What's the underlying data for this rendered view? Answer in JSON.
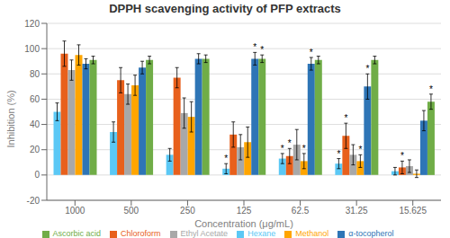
{
  "chart_data": {
    "type": "bar",
    "title": "DPPH scavenging activity of PFP extracts",
    "xlabel": "Concentration (μg/mL)",
    "ylabel": "Inhibition (%)",
    "categories": [
      "1000",
      "500",
      "250",
      "125",
      "62.5",
      "31.25",
      "15.625"
    ],
    "series": [
      {
        "name": "Hexane",
        "color": "#5BC8F5",
        "values": [
          50,
          34,
          16,
          5,
          13,
          9,
          3
        ],
        "errors": [
          7,
          8,
          5,
          4,
          4,
          4,
          3
        ]
      },
      {
        "name": "Chloroform",
        "color": "#E8601C",
        "values": [
          96,
          75,
          77,
          32,
          15,
          31,
          6
        ],
        "errors": [
          10,
          10,
          8,
          10,
          6,
          10,
          5
        ]
      },
      {
        "name": "Ethyl Acetate",
        "color": "#A8A8A8",
        "values": [
          83,
          64,
          49,
          22,
          24,
          16,
          7
        ],
        "errors": [
          8,
          8,
          12,
          10,
          12,
          8,
          5
        ]
      },
      {
        "name": "Methanol",
        "color": "#FFA500",
        "values": [
          95,
          71,
          46,
          26,
          11,
          11,
          1
        ],
        "errors": [
          8,
          8,
          12,
          12,
          6,
          5,
          3
        ]
      },
      {
        "name": "α-tocopherol",
        "color": "#2E75B6",
        "values": [
          88,
          85,
          92,
          92,
          88,
          70,
          43
        ],
        "errors": [
          4,
          5,
          4,
          5,
          5,
          10,
          8
        ]
      },
      {
        "name": "Ascorbic acid",
        "color": "#70AD47",
        "values": [
          91,
          91,
          92,
          92,
          91,
          91,
          58
        ],
        "errors": [
          3,
          3,
          3,
          3,
          3,
          3,
          6
        ]
      }
    ],
    "annotations": [
      {
        "text": "*",
        "category": "125",
        "series": "Hexane"
      },
      {
        "text": "*",
        "category": "125",
        "series": "α-tocopherol"
      },
      {
        "text": "*",
        "category": "125",
        "series": "Ascorbic acid"
      },
      {
        "text": "*",
        "category": "62.5",
        "series": "Hexane"
      },
      {
        "text": "*",
        "category": "62.5",
        "series": "Chloroform"
      },
      {
        "text": "*",
        "category": "62.5",
        "series": "Methanol"
      },
      {
        "text": "*",
        "category": "62.5",
        "series": "α-tocopherol"
      },
      {
        "text": "*",
        "category": "31.25",
        "series": "Hexane"
      },
      {
        "text": "*",
        "category": "31.25",
        "series": "Chloroform"
      },
      {
        "text": "*",
        "category": "31.25",
        "series": "Methanol"
      },
      {
        "text": "*",
        "category": "31.25",
        "series": "α-tocopherol"
      },
      {
        "text": "*",
        "category": "15.625",
        "series": "Chloroform"
      },
      {
        "text": "*",
        "category": "15.625",
        "series": "Ascorbic acid"
      }
    ],
    "ylim": [
      -20,
      120
    ],
    "yticks": [
      -20,
      0,
      20,
      40,
      60,
      80,
      100,
      120
    ],
    "grid": true,
    "legend": "bottom"
  }
}
